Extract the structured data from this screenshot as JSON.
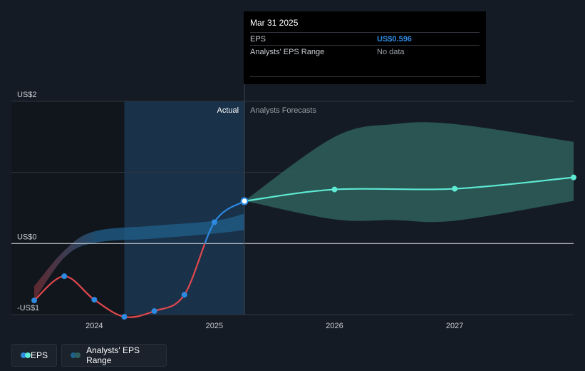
{
  "chart_data": {
    "type": "line",
    "title": "",
    "xlabel": "",
    "ylabel": "",
    "ylim": [
      -1,
      2
    ],
    "y_ticks": [
      {
        "value": 2,
        "label": "US$2"
      },
      {
        "value": 0,
        "label": "US$0"
      },
      {
        "value": -1,
        "label": "-US$1"
      }
    ],
    "x_ticks": [
      {
        "value": 2024,
        "label": "2024"
      },
      {
        "value": 2025,
        "label": "2025"
      },
      {
        "value": 2026,
        "label": "2026"
      },
      {
        "value": 2027,
        "label": "2027"
      }
    ],
    "x_range": [
      2023.31,
      2027.99
    ],
    "actual_start": 2024.25,
    "forecast_start": 2025.25,
    "region_labels": {
      "actual": "Actual",
      "forecast": "Analysts Forecasts"
    },
    "series": [
      {
        "name": "EPS (actual)",
        "color_negative": "#e0484d",
        "color_positive": "#2d8ae0",
        "points": [
          {
            "x": 2023.5,
            "y": -0.8
          },
          {
            "x": 2023.75,
            "y": -0.46
          },
          {
            "x": 2024.0,
            "y": -0.79
          },
          {
            "x": 2024.25,
            "y": -1.03
          },
          {
            "x": 2024.5,
            "y": -0.95
          },
          {
            "x": 2024.75,
            "y": -0.72
          },
          {
            "x": 2025.0,
            "y": 0.3
          },
          {
            "x": 2025.25,
            "y": 0.596
          }
        ]
      },
      {
        "name": "EPS (forecast)",
        "color": "#5eead4",
        "points": [
          {
            "x": 2025.25,
            "y": 0.596
          },
          {
            "x": 2026.0,
            "y": 0.76
          },
          {
            "x": 2027.0,
            "y": 0.77
          },
          {
            "x": 2027.99,
            "y": 0.93
          }
        ]
      }
    ],
    "past_range_band": {
      "upper": [
        {
          "x": 2023.5,
          "y": -0.6
        },
        {
          "x": 2023.75,
          "y": -0.1
        },
        {
          "x": 2024.0,
          "y": 0.17
        },
        {
          "x": 2024.5,
          "y": 0.25
        },
        {
          "x": 2025.0,
          "y": 0.32
        },
        {
          "x": 2025.25,
          "y": 0.42
        }
      ],
      "lower": [
        {
          "x": 2023.5,
          "y": -0.8
        },
        {
          "x": 2023.75,
          "y": -0.2
        },
        {
          "x": 2024.0,
          "y": 0.01
        },
        {
          "x": 2024.5,
          "y": 0.07
        },
        {
          "x": 2025.0,
          "y": 0.14
        },
        {
          "x": 2025.25,
          "y": 0.19
        }
      ]
    },
    "forecast_range_band": {
      "upper": [
        {
          "x": 2025.25,
          "y": 0.6
        },
        {
          "x": 2026.0,
          "y": 1.5
        },
        {
          "x": 2026.5,
          "y": 1.68
        },
        {
          "x": 2027.0,
          "y": 1.68
        },
        {
          "x": 2027.99,
          "y": 1.43
        }
      ],
      "lower": [
        {
          "x": 2025.25,
          "y": 0.6
        },
        {
          "x": 2026.0,
          "y": 0.34
        },
        {
          "x": 2026.5,
          "y": 0.33
        },
        {
          "x": 2027.0,
          "y": 0.32
        },
        {
          "x": 2027.99,
          "y": 0.6
        }
      ]
    },
    "colors": {
      "band_past": "#1f5f8b",
      "band_past_neg": "#7a2f36",
      "band_forecast": "#2e5f5c",
      "highlight": "#1a3550",
      "grid": "#2c3440",
      "zero_line": "#c0c4ca",
      "axis_text": "#c9cdd3"
    }
  },
  "tooltip": {
    "title": "Mar 31 2025",
    "rows": [
      {
        "label": "EPS",
        "value": "US$0.596"
      },
      {
        "label": "Analysts' EPS Range",
        "value": "No data"
      }
    ]
  },
  "legend": {
    "items": [
      {
        "label": "EPS",
        "colors": [
          "#2d8ae0",
          "#5eead4"
        ]
      },
      {
        "label": "Analysts' EPS Range",
        "colors": [
          "#1f5f8b",
          "#2e5f5c"
        ]
      }
    ]
  }
}
